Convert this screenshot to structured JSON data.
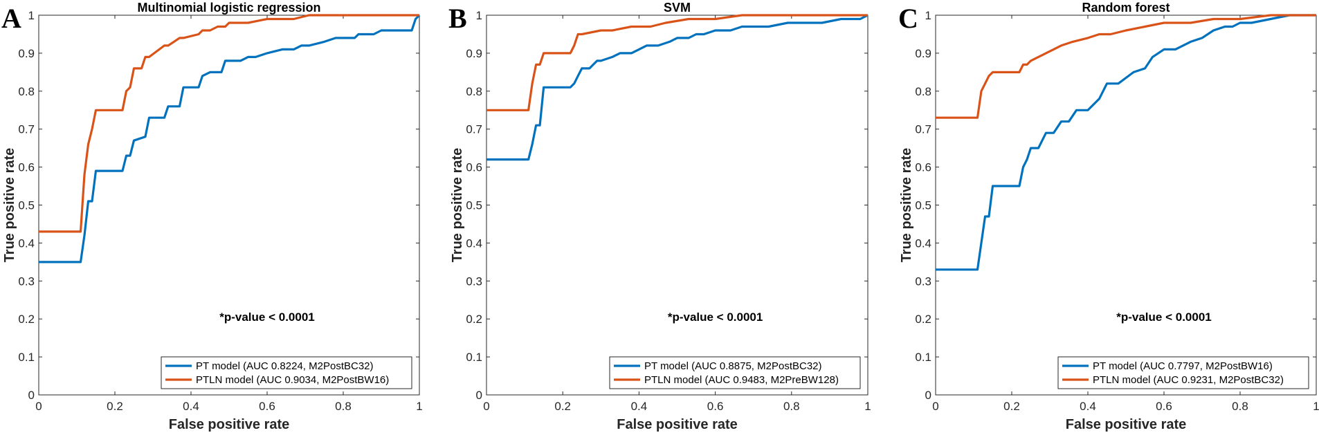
{
  "chart_data": [
    {
      "type": "line",
      "panel_letter": "A",
      "title": "Multinomial logistic regression",
      "xlabel": "False positive rate",
      "ylabel": "True positive rate",
      "xlim": [
        0,
        1
      ],
      "ylim": [
        0,
        1
      ],
      "xticks": [
        "0",
        "0.2",
        "0.4",
        "0.6",
        "0.8",
        "1"
      ],
      "yticks": [
        "0",
        "0.1",
        "0.2",
        "0.3",
        "0.4",
        "0.5",
        "0.6",
        "0.7",
        "0.8",
        "0.9",
        "1"
      ],
      "annotation": "*p-value < 0.0001",
      "legend_location": "bottom-right",
      "series": [
        {
          "name": "PT model (AUC 0.8224,  M2PostBC32)",
          "color": "#0072BD",
          "x": [
            0,
            0.11,
            0.12,
            0.13,
            0.14,
            0.15,
            0.22,
            0.23,
            0.24,
            0.25,
            0.28,
            0.29,
            0.33,
            0.34,
            0.37,
            0.38,
            0.42,
            0.43,
            0.45,
            0.48,
            0.49,
            0.53,
            0.55,
            0.57,
            0.6,
            0.64,
            0.67,
            0.69,
            0.71,
            0.75,
            0.78,
            0.83,
            0.84,
            0.88,
            0.9,
            0.93,
            0.98,
            0.99,
            1
          ],
          "y": [
            0.35,
            0.35,
            0.42,
            0.51,
            0.51,
            0.59,
            0.59,
            0.63,
            0.63,
            0.67,
            0.68,
            0.73,
            0.73,
            0.76,
            0.76,
            0.81,
            0.81,
            0.84,
            0.85,
            0.85,
            0.88,
            0.88,
            0.89,
            0.89,
            0.9,
            0.91,
            0.91,
            0.92,
            0.92,
            0.93,
            0.94,
            0.94,
            0.95,
            0.95,
            0.96,
            0.96,
            0.96,
            0.99,
            1
          ]
        },
        {
          "name": "PTLN model (AUC 0.9034, M2PostBW16)",
          "color": "#D95319",
          "x": [
            0,
            0.11,
            0.12,
            0.13,
            0.14,
            0.15,
            0.22,
            0.23,
            0.24,
            0.25,
            0.27,
            0.28,
            0.29,
            0.33,
            0.34,
            0.37,
            0.38,
            0.42,
            0.43,
            0.45,
            0.47,
            0.49,
            0.5,
            0.53,
            0.55,
            0.6,
            0.65,
            0.67,
            0.71,
            0.75,
            0.8,
            0.88,
            1
          ],
          "y": [
            0.43,
            0.43,
            0.58,
            0.66,
            0.7,
            0.75,
            0.75,
            0.8,
            0.81,
            0.86,
            0.86,
            0.89,
            0.89,
            0.92,
            0.92,
            0.94,
            0.94,
            0.95,
            0.96,
            0.96,
            0.97,
            0.97,
            0.98,
            0.98,
            0.98,
            0.99,
            0.99,
            0.99,
            1,
            1,
            1,
            1,
            1
          ]
        }
      ]
    },
    {
      "type": "line",
      "panel_letter": "B",
      "title": "SVM",
      "xlabel": "False positive rate",
      "ylabel": "True positive rate",
      "xlim": [
        0,
        1
      ],
      "ylim": [
        0,
        1
      ],
      "xticks": [
        "0",
        "0.2",
        "0.4",
        "0.6",
        "0.8",
        "1"
      ],
      "yticks": [
        "0",
        "0.1",
        "0.2",
        "0.3",
        "0.4",
        "0.5",
        "0.6",
        "0.7",
        "0.8",
        "0.9",
        "1"
      ],
      "annotation": "*p-value < 0.0001",
      "legend_location": "bottom-right",
      "series": [
        {
          "name": "PT model (AUC 0.8875, M2PostBC32)",
          "color": "#0072BD",
          "x": [
            0,
            0.11,
            0.12,
            0.13,
            0.14,
            0.15,
            0.22,
            0.23,
            0.24,
            0.25,
            0.27,
            0.29,
            0.3,
            0.33,
            0.35,
            0.38,
            0.4,
            0.42,
            0.45,
            0.48,
            0.5,
            0.53,
            0.55,
            0.57,
            0.6,
            0.64,
            0.67,
            0.71,
            0.74,
            0.79,
            0.84,
            0.88,
            0.93,
            0.98,
            1
          ],
          "y": [
            0.62,
            0.62,
            0.66,
            0.71,
            0.71,
            0.81,
            0.81,
            0.82,
            0.84,
            0.86,
            0.86,
            0.88,
            0.88,
            0.89,
            0.9,
            0.9,
            0.91,
            0.92,
            0.92,
            0.93,
            0.94,
            0.94,
            0.95,
            0.95,
            0.96,
            0.96,
            0.97,
            0.97,
            0.97,
            0.98,
            0.98,
            0.98,
            0.99,
            0.99,
            1
          ]
        },
        {
          "name": "PTLN model (AUC 0.9483, M2PreBW128)",
          "color": "#D95319",
          "x": [
            0,
            0.11,
            0.12,
            0.13,
            0.14,
            0.15,
            0.22,
            0.23,
            0.24,
            0.25,
            0.3,
            0.33,
            0.38,
            0.43,
            0.47,
            0.53,
            0.6,
            0.67,
            0.77,
            0.88,
            1
          ],
          "y": [
            0.75,
            0.75,
            0.82,
            0.87,
            0.87,
            0.9,
            0.9,
            0.92,
            0.95,
            0.95,
            0.96,
            0.96,
            0.97,
            0.97,
            0.98,
            0.99,
            0.99,
            1,
            1,
            1,
            1
          ]
        }
      ]
    },
    {
      "type": "line",
      "panel_letter": "C",
      "title": "Random forest",
      "xlabel": "False positive rate",
      "ylabel": "True positive rate",
      "xlim": [
        0,
        1
      ],
      "ylim": [
        0,
        1
      ],
      "xticks": [
        "0",
        "0.2",
        "0.4",
        "0.6",
        "0.8",
        "1"
      ],
      "yticks": [
        "0",
        "0.1",
        "0.2",
        "0.3",
        "0.4",
        "0.5",
        "0.6",
        "0.7",
        "0.8",
        "0.9",
        "1"
      ],
      "annotation": "*p-value < 0.0001",
      "legend_location": "bottom-right",
      "series": [
        {
          "name": "PT model (AUC 0.7797, M2PostBW16)",
          "color": "#0072BD",
          "x": [
            0,
            0.11,
            0.12,
            0.13,
            0.14,
            0.15,
            0.22,
            0.23,
            0.24,
            0.25,
            0.27,
            0.29,
            0.31,
            0.33,
            0.35,
            0.37,
            0.4,
            0.43,
            0.45,
            0.48,
            0.52,
            0.55,
            0.57,
            0.6,
            0.63,
            0.67,
            0.7,
            0.73,
            0.76,
            0.78,
            0.8,
            0.83,
            0.88,
            0.93,
            1
          ],
          "y": [
            0.33,
            0.33,
            0.4,
            0.47,
            0.47,
            0.55,
            0.55,
            0.6,
            0.62,
            0.65,
            0.65,
            0.69,
            0.69,
            0.72,
            0.72,
            0.75,
            0.75,
            0.78,
            0.82,
            0.82,
            0.85,
            0.86,
            0.89,
            0.91,
            0.91,
            0.93,
            0.94,
            0.96,
            0.97,
            0.97,
            0.98,
            0.98,
            0.99,
            1,
            1
          ]
        },
        {
          "name": "PTLN model (AUC 0.9231, M2PostBC32)",
          "color": "#D95319",
          "x": [
            0,
            0.11,
            0.12,
            0.13,
            0.14,
            0.15,
            0.22,
            0.23,
            0.24,
            0.25,
            0.27,
            0.29,
            0.31,
            0.33,
            0.36,
            0.4,
            0.43,
            0.46,
            0.5,
            0.55,
            0.6,
            0.67,
            0.73,
            0.8,
            0.88,
            0.93,
            1
          ],
          "y": [
            0.73,
            0.73,
            0.8,
            0.82,
            0.84,
            0.85,
            0.85,
            0.87,
            0.87,
            0.88,
            0.89,
            0.9,
            0.91,
            0.92,
            0.93,
            0.94,
            0.95,
            0.95,
            0.96,
            0.97,
            0.98,
            0.98,
            0.99,
            0.99,
            1,
            1,
            1
          ]
        }
      ]
    }
  ]
}
